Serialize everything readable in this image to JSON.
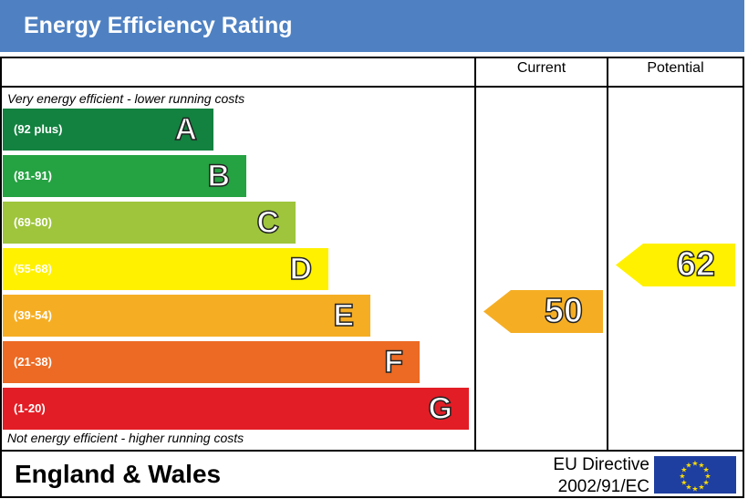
{
  "title": "Energy Efficiency Rating",
  "columns": {
    "current": "Current",
    "potential": "Potential"
  },
  "top_note": "Very energy efficient - lower running costs",
  "bottom_note": "Not energy efficient - higher running costs",
  "chart_data": {
    "type": "bar",
    "title": "Energy Efficiency Rating",
    "bands": [
      {
        "letter": "A",
        "range": "(92 plus)",
        "color": "#138140"
      },
      {
        "letter": "B",
        "range": "(81-91)",
        "color": "#25a242"
      },
      {
        "letter": "C",
        "range": "(69-80)",
        "color": "#9ec53c"
      },
      {
        "letter": "D",
        "range": "(55-68)",
        "color": "#fff100"
      },
      {
        "letter": "E",
        "range": "(39-54)",
        "color": "#f5ae24"
      },
      {
        "letter": "F",
        "range": "(21-38)",
        "color": "#ec6a24"
      },
      {
        "letter": "G",
        "range": "(1-20)",
        "color": "#e31d25"
      }
    ],
    "current": {
      "value": 50,
      "band": "E",
      "color": "#f5ae24"
    },
    "potential": {
      "value": 62,
      "band": "D",
      "color": "#fff100"
    }
  },
  "footer": {
    "region": "England & Wales",
    "directive_line1": "EU Directive",
    "directive_line2": "2002/91/EC"
  }
}
